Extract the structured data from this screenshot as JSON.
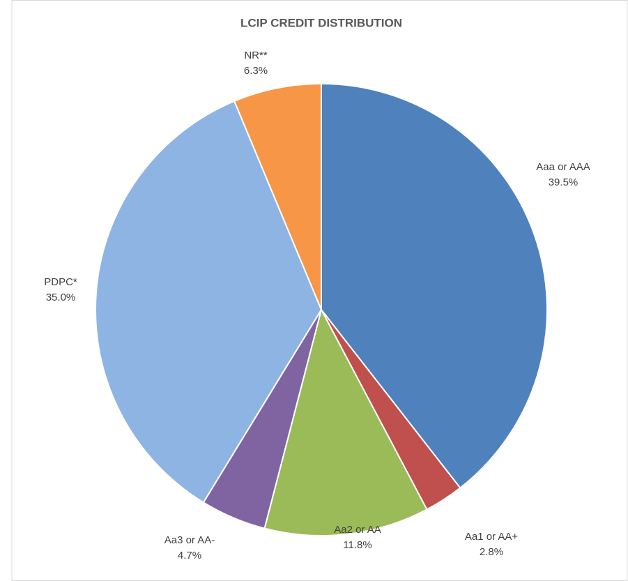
{
  "chart_data": {
    "type": "pie",
    "title": "LCIP CREDIT DISTRIBUTION",
    "categories": [
      "Aaa or AAA",
      "Aa1 or AA+",
      "Aa2 or AA",
      "Aa3 or AA-",
      "PDPC*",
      "NR**"
    ],
    "values": [
      39.5,
      2.8,
      11.8,
      4.7,
      35.0,
      6.3
    ],
    "value_labels": [
      "39.5%",
      "2.8%",
      "11.8%",
      "4.7%",
      "35.0%",
      "6.3%"
    ],
    "colors": [
      "#4f81bd",
      "#c0504d",
      "#9bbb59",
      "#8064a2",
      "#8eb4e3",
      "#f79646"
    ]
  }
}
